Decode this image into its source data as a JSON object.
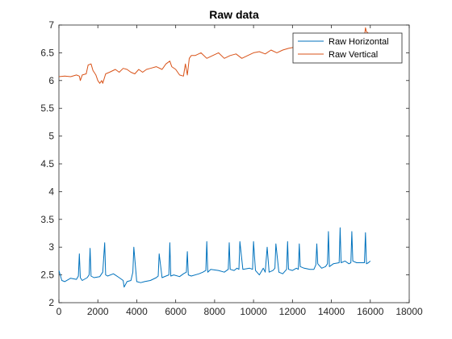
{
  "chart_data": {
    "type": "line",
    "title": "Raw data",
    "xlabel": "",
    "ylabel": "",
    "xlim": [
      0,
      18000
    ],
    "ylim": [
      2,
      7
    ],
    "xticks": [
      0,
      2000,
      4000,
      6000,
      8000,
      10000,
      12000,
      14000,
      16000,
      18000
    ],
    "yticks": [
      2,
      2.5,
      3,
      3.5,
      4,
      4.5,
      5,
      5.5,
      6,
      6.5,
      7
    ],
    "xtick_labels": [
      "0",
      "2000",
      "4000",
      "6000",
      "8000",
      "10000",
      "12000",
      "14000",
      "16000",
      "18000"
    ],
    "ytick_labels": [
      "2",
      "2.5",
      "3",
      "3.5",
      "4",
      "4.5",
      "5",
      "5.5",
      "6",
      "6.5",
      "7"
    ],
    "grid": false,
    "legend_position": "top-right",
    "series": [
      {
        "name": "Raw Horizontal",
        "color": "#0072BD",
        "x": [
          0,
          150,
          300,
          600,
          900,
          1000,
          1050,
          1100,
          1200,
          1450,
          1550,
          1600,
          1650,
          1800,
          2100,
          2250,
          2350,
          2400,
          2500,
          2800,
          3100,
          3300,
          3350,
          3500,
          3700,
          3800,
          3850,
          4000,
          4200,
          4400,
          4700,
          5000,
          5100,
          5150,
          5300,
          5500,
          5650,
          5700,
          5750,
          5900,
          6200,
          6400,
          6550,
          6600,
          6650,
          6800,
          7200,
          7400,
          7550,
          7600,
          7650,
          7800,
          8200,
          8500,
          8700,
          8750,
          8800,
          9000,
          9150,
          9250,
          9300,
          9450,
          9800,
          9950,
          10000,
          10100,
          10300,
          10500,
          10600,
          10700,
          10800,
          11000,
          11100,
          11150,
          11300,
          11500,
          11700,
          11750,
          11800,
          12000,
          12200,
          12300,
          12350,
          12400,
          12600,
          12900,
          13100,
          13200,
          13250,
          13300,
          13500,
          13700,
          13800,
          13850,
          13900,
          14100,
          14400,
          14450,
          14500,
          14700,
          14900,
          15000,
          15050,
          15100,
          15300,
          15500,
          15700,
          15750,
          15800,
          15900,
          16000
        ],
        "values": [
          2.58,
          2.4,
          2.38,
          2.44,
          2.42,
          2.48,
          2.88,
          2.45,
          2.4,
          2.45,
          2.5,
          2.98,
          2.48,
          2.45,
          2.47,
          2.55,
          3.08,
          2.5,
          2.48,
          2.52,
          2.45,
          2.4,
          2.28,
          2.38,
          2.4,
          2.55,
          3.0,
          2.38,
          2.36,
          2.38,
          2.4,
          2.45,
          2.48,
          2.88,
          2.45,
          2.48,
          2.5,
          3.08,
          2.48,
          2.5,
          2.47,
          2.52,
          2.55,
          2.92,
          2.5,
          2.48,
          2.52,
          2.55,
          2.58,
          3.1,
          2.55,
          2.6,
          2.58,
          2.55,
          2.6,
          3.08,
          2.6,
          2.58,
          2.62,
          2.6,
          3.1,
          2.6,
          2.62,
          2.6,
          3.1,
          2.58,
          2.5,
          2.62,
          2.55,
          3.0,
          2.55,
          2.58,
          2.62,
          3.06,
          2.55,
          2.52,
          2.6,
          3.1,
          2.6,
          2.58,
          2.62,
          2.6,
          3.06,
          2.65,
          2.62,
          2.6,
          2.6,
          2.68,
          3.06,
          2.7,
          2.62,
          2.65,
          2.7,
          3.28,
          2.65,
          2.7,
          2.72,
          3.35,
          2.72,
          2.75,
          2.7,
          2.72,
          3.28,
          2.75,
          2.72,
          2.72,
          2.72,
          3.26,
          2.7,
          2.72,
          2.75
        ]
      },
      {
        "name": "Raw Vertical",
        "color": "#D95319",
        "x": [
          0,
          300,
          600,
          900,
          1050,
          1100,
          1200,
          1400,
          1500,
          1650,
          1750,
          1900,
          2000,
          2100,
          2200,
          2250,
          2400,
          2600,
          2900,
          3100,
          3300,
          3500,
          3700,
          3900,
          4100,
          4300,
          4500,
          4700,
          5000,
          5300,
          5500,
          5700,
          5800,
          6000,
          6200,
          6400,
          6500,
          6600,
          6700,
          6800,
          7000,
          7300,
          7600,
          7900,
          8200,
          8500,
          8800,
          9100,
          9400,
          9700,
          10000,
          10300,
          10600,
          10900,
          11200,
          11500,
          11800,
          12100,
          12300,
          12500,
          12800,
          13100,
          13400,
          13700,
          14000,
          14300,
          14600,
          14900,
          15200,
          15500,
          15700,
          15750,
          15800,
          15900
        ],
        "values": [
          6.07,
          6.08,
          6.07,
          6.1,
          6.08,
          6.0,
          6.1,
          6.12,
          6.28,
          6.3,
          6.18,
          6.1,
          6.0,
          5.95,
          6.0,
          5.95,
          6.12,
          6.15,
          6.2,
          6.15,
          6.22,
          6.2,
          6.15,
          6.12,
          6.2,
          6.15,
          6.2,
          6.22,
          6.25,
          6.2,
          6.3,
          6.35,
          6.25,
          6.2,
          6.1,
          6.08,
          6.3,
          6.1,
          6.4,
          6.45,
          6.45,
          6.5,
          6.4,
          6.45,
          6.5,
          6.4,
          6.45,
          6.48,
          6.4,
          6.45,
          6.5,
          6.52,
          6.48,
          6.55,
          6.5,
          6.55,
          6.58,
          6.6,
          6.58,
          6.62,
          6.6,
          6.62,
          6.65,
          6.6,
          6.65,
          6.62,
          6.68,
          6.7,
          6.72,
          6.75,
          6.8,
          6.95,
          6.88,
          6.85
        ]
      }
    ]
  }
}
